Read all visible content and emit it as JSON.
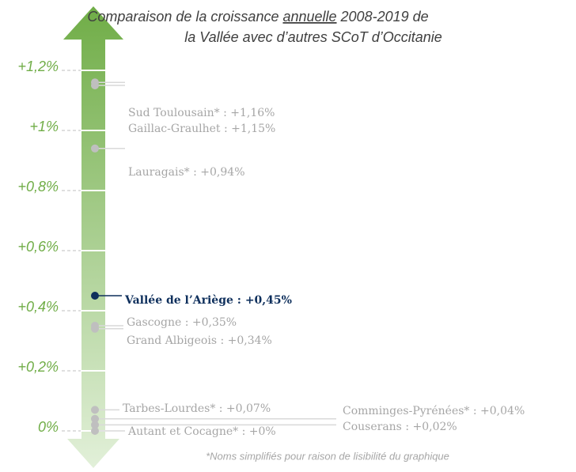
{
  "chart_data": {
    "type": "scale",
    "title": [
      "Comparaison de la croissance ",
      "annuelle",
      " 2008-2019 de"
    ],
    "subtitle": "la Vallée avec d’autres SCoT d’Occitanie",
    "labels": [
      "Sud Toulousain* : +1,16%",
      "Gaillac-Graulhet : +1,15%",
      "Lauragais* : +0,94%",
      "Vallée de l’Ariège : +0,45%",
      "Gascogne : +0,35%",
      "Grand Albigeois : +0,34%",
      "Tarbes-Lourdes* : +0,07%",
      "Comminges-Pyrénées* : +0,04%",
      "Couserans : +0,02%",
      "Autant et Cocagne* : +0%"
    ],
    "values": [
      1.16,
      1.15,
      0.94,
      0.45,
      0.35,
      0.34,
      0.07,
      0.04,
      0.02,
      0
    ],
    "color": "#a6a6a6",
    "highlight": 3,
    "highlight_color": "#0e2f5c",
    "axis_color": "#70ad47",
    "ylim": [
      0,
      1.2
    ],
    "yticks": [
      {
        "value": 1.2,
        "label": "+1,2%"
      },
      {
        "value": 1,
        "label": "+1%"
      },
      {
        "value": 0.8,
        "label": "+0,8%"
      },
      {
        "value": 0.6,
        "label": "+0,6%"
      },
      {
        "value": 0.4,
        "label": "+0,4%"
      },
      {
        "value": 0.2,
        "label": "+0,2%"
      },
      {
        "value": 0,
        "label": "0%"
      }
    ],
    "note": "*Noms simplifiés pour raison de lisibilité du graphique"
  }
}
